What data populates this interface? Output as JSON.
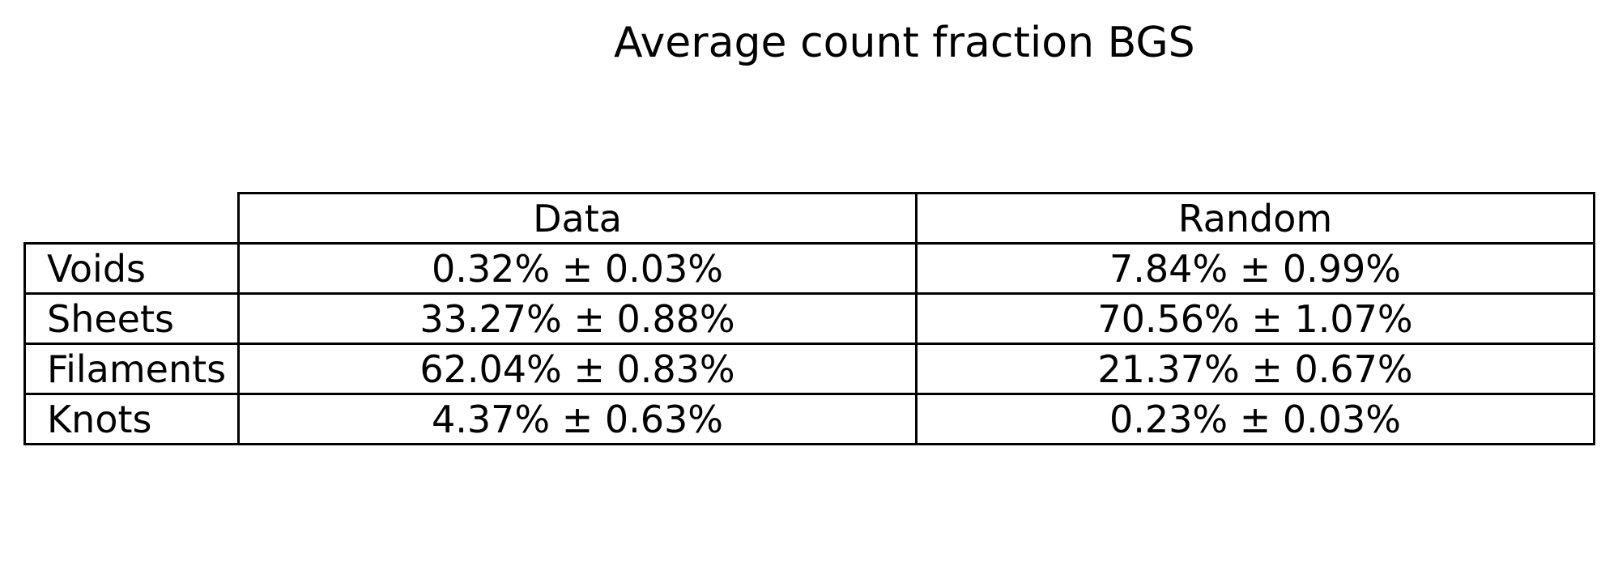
{
  "chart_data": {
    "type": "table",
    "title": "Average count fraction BGS",
    "columns": [
      "Data",
      "Random"
    ],
    "rows": [
      {
        "label": "Voids",
        "cells": [
          "0.32% ± 0.03%",
          "7.84% ± 0.99%"
        ]
      },
      {
        "label": "Sheets",
        "cells": [
          "33.27% ± 0.88%",
          "70.56% ± 1.07%"
        ]
      },
      {
        "label": "Filaments",
        "cells": [
          "62.04% ± 0.83%",
          "21.37% ± 0.67%"
        ]
      },
      {
        "label": "Knots",
        "cells": [
          "4.37% ± 0.63%",
          "0.23% ± 0.03%"
        ]
      }
    ]
  }
}
